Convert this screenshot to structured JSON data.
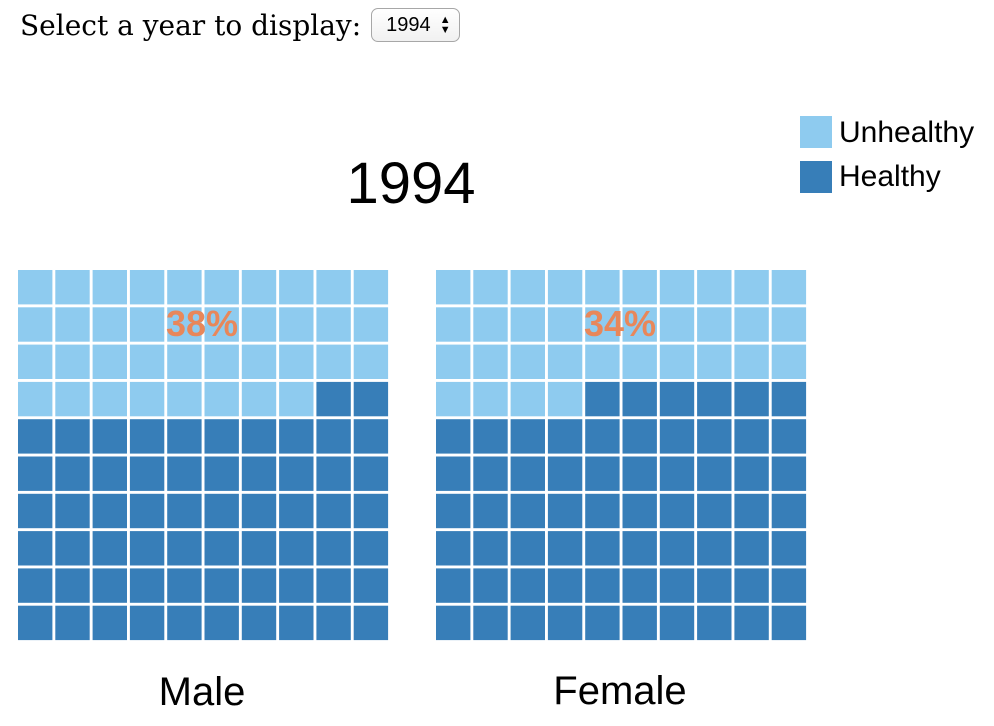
{
  "controls": {
    "label": "Select a year to display:",
    "selected_year": "1994",
    "arrow_up": "▲",
    "arrow_down": "▼"
  },
  "colors": {
    "unhealthy": "#8ecbef",
    "healthy": "#377eb8",
    "percent_label": "#e8875a"
  },
  "chart_data": {
    "type": "waffle",
    "title": "1994",
    "grid": {
      "rows": 10,
      "cols": 10
    },
    "legend": {
      "position": "top-right",
      "entries": [
        {
          "name": "Unhealthy",
          "color_key": "unhealthy"
        },
        {
          "name": "Healthy",
          "color_key": "healthy"
        }
      ]
    },
    "series": [
      {
        "name": "Male",
        "unhealthy_pct": 38,
        "healthy_pct": 62,
        "label": "38%"
      },
      {
        "name": "Female",
        "unhealthy_pct": 34,
        "healthy_pct": 66,
        "label": "34%"
      }
    ]
  }
}
